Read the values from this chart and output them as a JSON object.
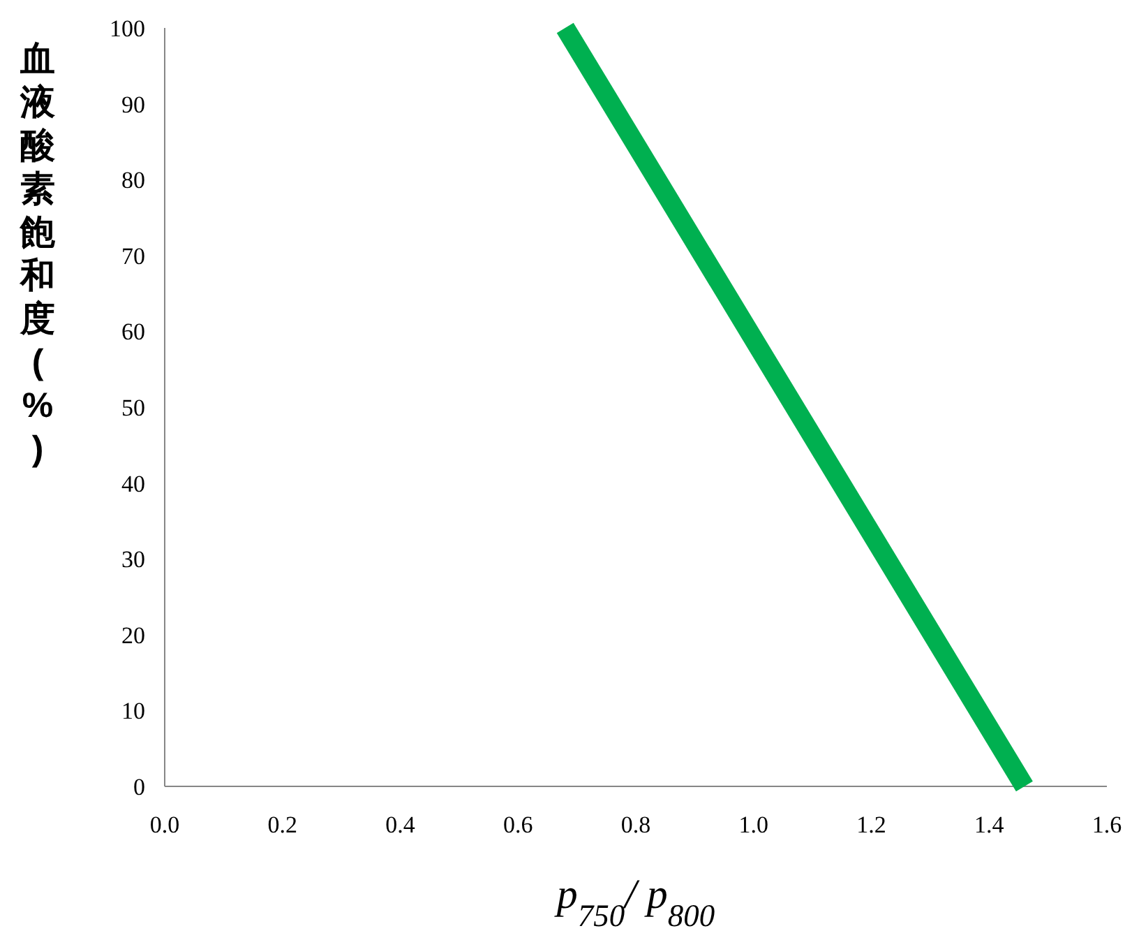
{
  "chart_data": {
    "type": "line",
    "xlabel": "p$_{750}$/ p$_{800}$",
    "ylabel": "血液酸素飽和度(%)",
    "x": [
      0.68,
      1.46
    ],
    "series": [
      {
        "color": "#00b050",
        "values": [
          100,
          0
        ]
      }
    ],
    "xlim": [
      0,
      1.6
    ],
    "xticks": [
      {
        "value": 0,
        "label": "0.0"
      },
      {
        "value": 0.2,
        "label": "0.2"
      },
      {
        "value": 0.4,
        "label": "0.4"
      },
      {
        "value": 0.6,
        "label": "0.6"
      },
      {
        "value": 0.8,
        "label": "0.8"
      },
      {
        "value": 1,
        "label": "1.0"
      },
      {
        "value": 1.2,
        "label": "1.2"
      },
      {
        "value": 1.4,
        "label": "1.4"
      },
      {
        "value": 1.6,
        "label": "1.6"
      }
    ],
    "ylim": [
      0,
      100
    ],
    "yticks": [
      0,
      10,
      20,
      30,
      40,
      50,
      60,
      70,
      80,
      90,
      100
    ],
    "grid": false,
    "marker": "none",
    "line_style": "solid"
  }
}
